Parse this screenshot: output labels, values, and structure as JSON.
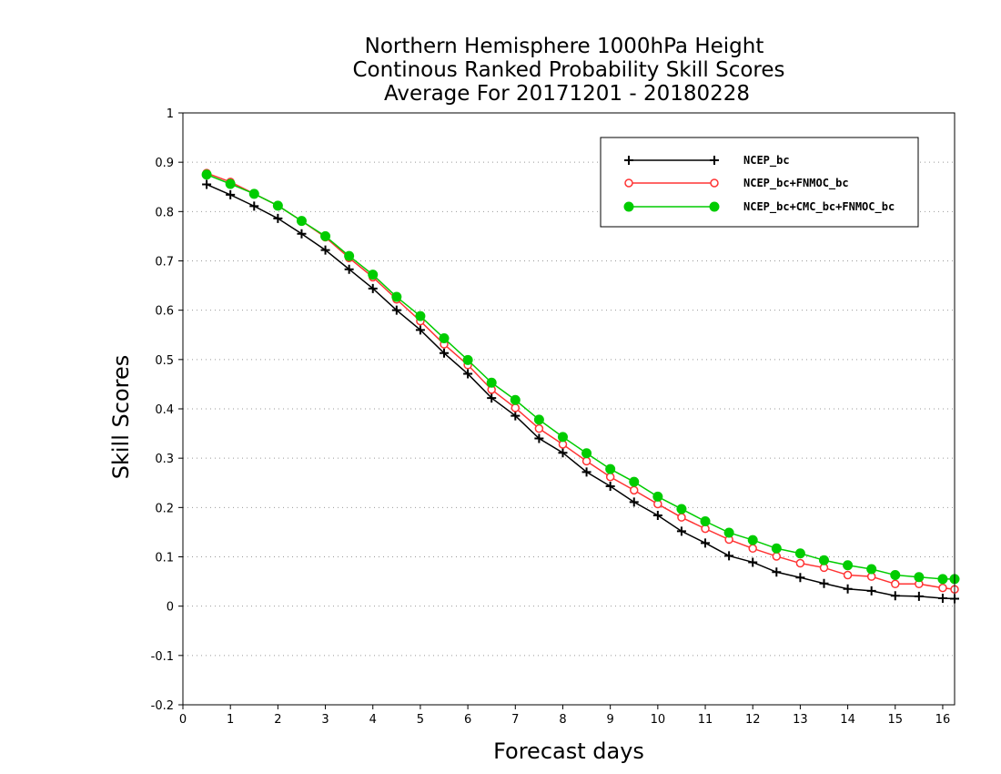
{
  "chart_data": {
    "type": "line",
    "title_lines": [
      "Northern Hemisphere 1000hPa Height",
      "Continous Ranked Probability Skill Scores",
      "Average For 20171201 - 20180228"
    ],
    "xlabel": "Forecast days",
    "ylabel": "Skill Scores",
    "xlim": [
      0,
      16.25
    ],
    "ylim": [
      -0.2,
      1.0
    ],
    "x_ticks": [
      0,
      1,
      2,
      3,
      4,
      5,
      6,
      7,
      8,
      9,
      10,
      11,
      12,
      13,
      14,
      15,
      16
    ],
    "x_tick_labels": [
      "0",
      "1",
      "2",
      "3",
      "4",
      "5",
      "6",
      "7",
      "8",
      "9",
      "10",
      "11",
      "12",
      "13",
      "14",
      "15",
      "16"
    ],
    "y_ticks": [
      -0.2,
      -0.1,
      0,
      0.1,
      0.2,
      0.3,
      0.4,
      0.5,
      0.6,
      0.7,
      0.8,
      0.9,
      1
    ],
    "y_tick_labels": [
      "-0.2",
      "-0.1",
      "0",
      "0.1",
      "0.2",
      "0.3",
      "0.4",
      "0.5",
      "0.6",
      "0.7",
      "0.8",
      "0.9",
      "1"
    ],
    "grid": true,
    "legend_position": "top-right",
    "x": [
      0.5,
      1,
      1.5,
      2,
      2.5,
      3,
      3.5,
      4,
      4.5,
      5,
      5.5,
      6,
      6.5,
      7,
      7.5,
      8,
      8.5,
      9,
      9.5,
      10,
      10.5,
      11,
      11.5,
      12,
      12.5,
      13,
      13.5,
      14,
      14.5,
      15,
      15.5,
      16,
      16.25
    ],
    "series": [
      {
        "name": "NCEP_bc",
        "color": "#000000",
        "marker": "plus",
        "values": [
          0.855,
          0.834,
          0.811,
          0.786,
          0.755,
          0.722,
          0.683,
          0.644,
          0.6,
          0.56,
          0.513,
          0.471,
          0.422,
          0.386,
          0.34,
          0.311,
          0.272,
          0.243,
          0.211,
          0.184,
          0.152,
          0.128,
          0.102,
          0.089,
          0.069,
          0.058,
          0.046,
          0.035,
          0.031,
          0.021,
          0.02,
          0.016,
          0.015
        ]
      },
      {
        "name": "NCEP_bc+FNMOC_bc",
        "color": "#ff3333",
        "marker": "open-circle",
        "values": [
          0.878,
          0.86,
          0.836,
          0.812,
          0.781,
          0.748,
          0.706,
          0.667,
          0.622,
          0.578,
          0.531,
          0.489,
          0.439,
          0.402,
          0.36,
          0.328,
          0.294,
          0.262,
          0.235,
          0.207,
          0.18,
          0.157,
          0.135,
          0.117,
          0.101,
          0.087,
          0.078,
          0.063,
          0.06,
          0.045,
          0.045,
          0.037,
          0.034
        ]
      },
      {
        "name": "NCEP_bc+CMC_bc+FNMOC_bc",
        "color": "#00cc00",
        "marker": "filled-circle",
        "values": [
          0.875,
          0.856,
          0.836,
          0.812,
          0.781,
          0.75,
          0.71,
          0.672,
          0.627,
          0.588,
          0.543,
          0.499,
          0.453,
          0.418,
          0.378,
          0.343,
          0.31,
          0.278,
          0.252,
          0.222,
          0.197,
          0.172,
          0.149,
          0.134,
          0.117,
          0.107,
          0.093,
          0.083,
          0.075,
          0.063,
          0.059,
          0.055,
          0.055
        ]
      }
    ]
  }
}
